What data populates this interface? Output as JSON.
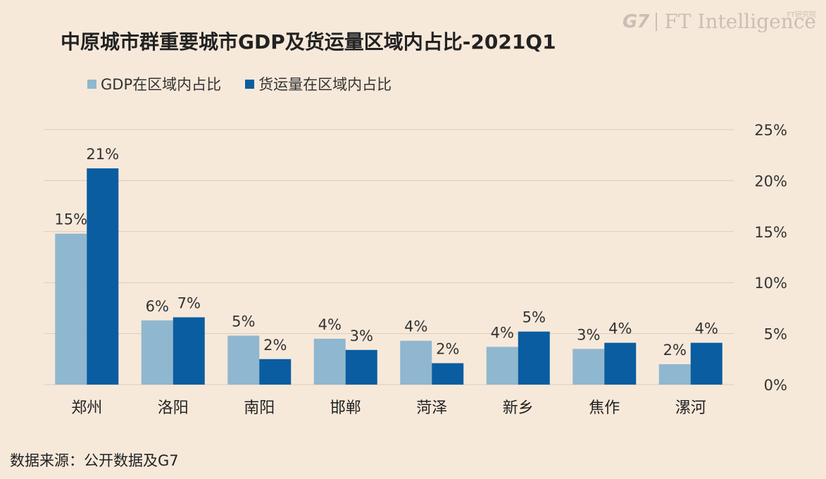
{
  "brand": {
    "g7": "G7",
    "ft": "FT Intelligence",
    "ft_cn": "FT研究院"
  },
  "colors": {
    "gdp": "#8fb7cf",
    "freight": "#0a5da0",
    "grid": "#dccbbb",
    "background": "#f7e9da"
  },
  "chart_data": {
    "type": "bar",
    "title": "中原城市群重要城市GDP及货运量区域内占比-2021Q1",
    "categories": [
      "郑州",
      "洛阳",
      "南阳",
      "邯郸",
      "菏泽",
      "新乡",
      "焦作",
      "漯河"
    ],
    "series": [
      {
        "name": "GDP在区域内占比",
        "values": [
          14.8,
          6.3,
          4.8,
          4.5,
          4.3,
          3.7,
          3.5,
          2.0
        ],
        "labels": [
          "15%",
          "6%",
          "5%",
          "4%",
          "4%",
          "4%",
          "3%",
          "2%"
        ]
      },
      {
        "name": "货运量在区域内占比",
        "values": [
          21.2,
          6.6,
          2.5,
          3.4,
          2.1,
          5.2,
          4.1,
          4.1
        ],
        "labels": [
          "21%",
          "7%",
          "2%",
          "3%",
          "2%",
          "5%",
          "4%",
          "4%"
        ]
      }
    ],
    "ylim": [
      0,
      25
    ],
    "yticks": [
      "0%",
      "5%",
      "10%",
      "15%",
      "20%",
      "25%"
    ],
    "y_axis_position": "right",
    "grid": true,
    "legend_position": "top-left"
  },
  "source": "数据来源：公开数据及G7"
}
